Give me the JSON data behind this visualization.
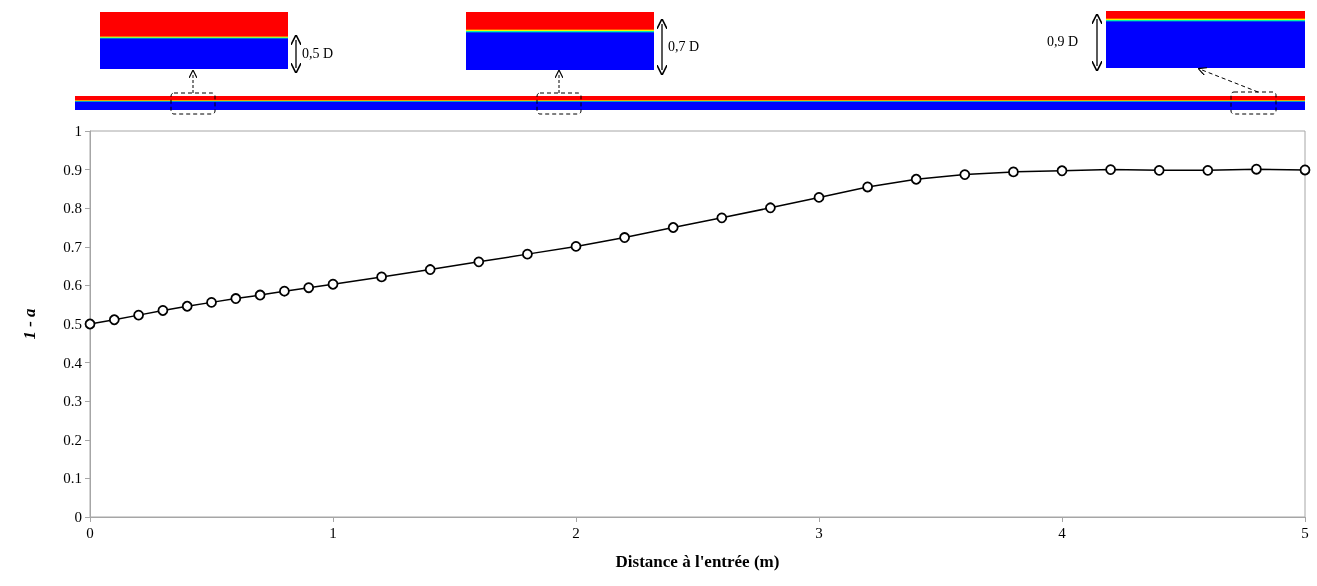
{
  "chart_data": {
    "type": "line",
    "xlabel": "Distance à l'entrée (m)",
    "ylabel": "1 - a",
    "annotations": [
      "0,5 D",
      "0,7 D",
      "0,9 D"
    ],
    "xlim": [
      0,
      5
    ],
    "xticks": [
      0,
      1,
      2,
      3,
      4,
      5
    ],
    "ylim": [
      0,
      1
    ],
    "yticks": [
      0,
      0.1,
      0.2,
      0.3,
      0.4,
      0.5,
      0.6,
      0.7,
      0.8,
      0.9,
      1
    ],
    "grid": false,
    "marker": "circle",
    "line_style": "solid",
    "series": [
      {
        "color": "#000000",
        "x": [
          0,
          0.1,
          0.2,
          0.3,
          0.4,
          0.5,
          0.6,
          0.7,
          0.8,
          0.9,
          1,
          1.2,
          1.4,
          1.6,
          1.8,
          2,
          2.2,
          2.4,
          2.6,
          2.8,
          3,
          3.2,
          3.4,
          3.6,
          3.8,
          4,
          4.2,
          4.4,
          4.6,
          4.8,
          5
        ],
        "values": [
          0.5,
          0.511,
          0.523,
          0.535,
          0.546,
          0.556,
          0.566,
          0.575,
          0.585,
          0.594,
          0.603,
          0.622,
          0.641,
          0.661,
          0.681,
          0.701,
          0.724,
          0.75,
          0.775,
          0.801,
          0.828,
          0.855,
          0.875,
          0.887,
          0.894,
          0.897,
          0.9,
          0.898,
          0.898,
          0.901,
          0.899
        ]
      }
    ]
  }
}
